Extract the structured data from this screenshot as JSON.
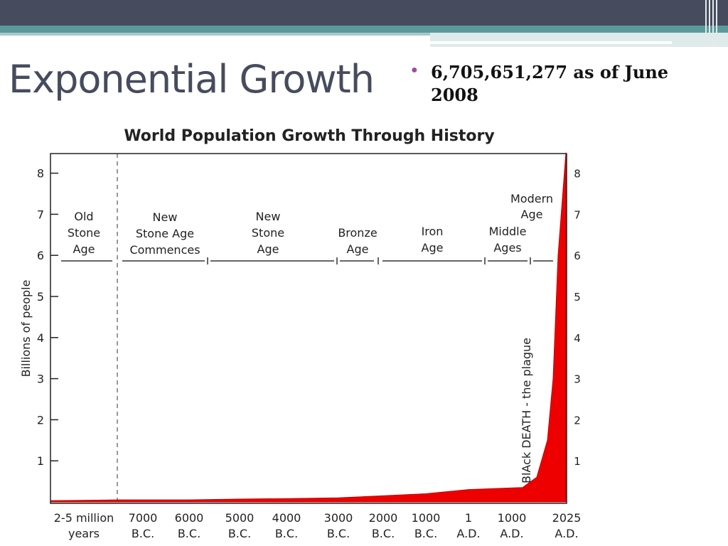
{
  "slide": {
    "title": "Exponential Growth",
    "bullet": "6,705,651,277 as of June 2008"
  },
  "colors": {
    "header_bar": "#464b5e",
    "accent_teal": "#5b9a9a",
    "bullet_marker": "#9c4c9c",
    "area_fill": "#ee0000"
  },
  "chart_data": {
    "type": "area",
    "title": "World Population Growth Through History",
    "ylabel": "Billions of people",
    "ylim": [
      0,
      8.5
    ],
    "yticks": [
      1,
      2,
      3,
      4,
      5,
      6,
      7,
      8
    ],
    "grid": false,
    "x_tick_labels": [
      [
        "2-5 million",
        "years"
      ],
      [
        "7000",
        "B.C."
      ],
      [
        "6000",
        "B.C."
      ],
      [
        "5000",
        "B.C."
      ],
      [
        "4000",
        "B.C."
      ],
      [
        "3000",
        "B.C."
      ],
      [
        "2000",
        "B.C."
      ],
      [
        "1000",
        "B.C."
      ],
      [
        "1",
        "A.D."
      ],
      [
        "1000",
        "A.D."
      ],
      [
        "2025",
        "A.D."
      ]
    ],
    "series": [
      {
        "values": [
          {
            "x": "2-5 million years",
            "y": 0.0
          },
          {
            "x": "7000 B.C.",
            "y": 0.05
          },
          {
            "x": "6000 B.C.",
            "y": 0.05
          },
          {
            "x": "5000 B.C.",
            "y": 0.07
          },
          {
            "x": "4000 B.C.",
            "y": 0.08
          },
          {
            "x": "3000 B.C.",
            "y": 0.1
          },
          {
            "x": "2000 B.C.",
            "y": 0.15
          },
          {
            "x": "1000 B.C.",
            "y": 0.2
          },
          {
            "x": "1 A.D.",
            "y": 0.3
          },
          {
            "x": "1000 A.D.",
            "y": 0.35
          },
          {
            "x": "2025 A.D.",
            "y": 8.5
          }
        ]
      }
    ],
    "eras": [
      "Old Stone Age",
      "New Stone Age Commences",
      "New Stone Age",
      "Bronze Age",
      "Iron Age",
      "Middle Ages",
      "Modern Age"
    ],
    "annotation": "BlAck DEATH - the plague"
  }
}
